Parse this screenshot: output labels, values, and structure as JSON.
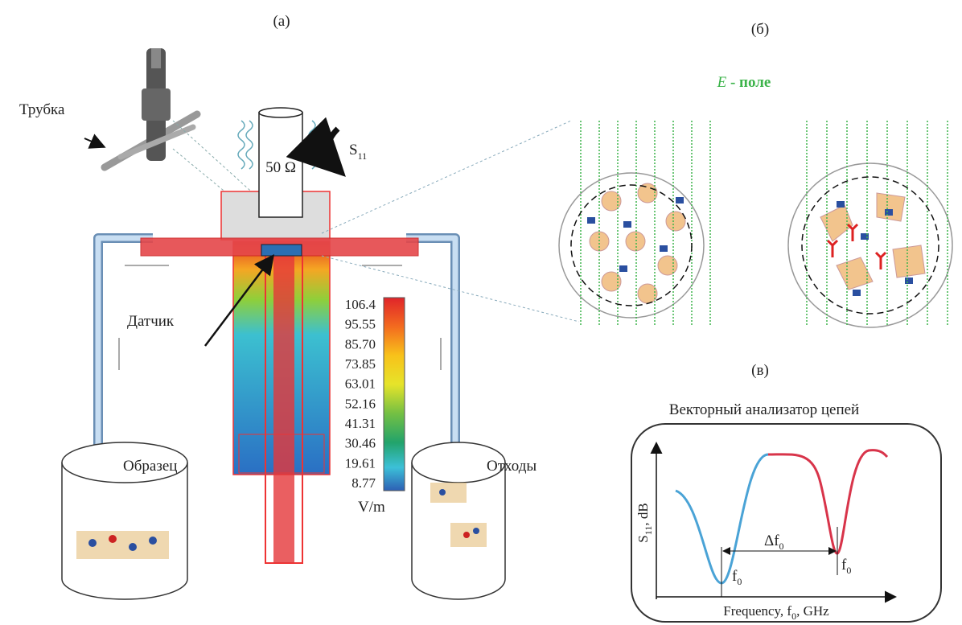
{
  "panels": {
    "a": "(а)",
    "b": "(б)",
    "c": "(в)"
  },
  "left": {
    "tube": "Трубка",
    "load": "50 Ω",
    "s11": {
      "base": "S",
      "sub": "11"
    },
    "sensor": "Датчик",
    "sample": "Образец",
    "waste": "Отходы",
    "colorbar": {
      "labels": [
        "106.4",
        "95.55",
        "85.70",
        "73.85",
        "63.01",
        "52.16",
        "41.31",
        "30.46",
        "19.61",
        "8.77"
      ],
      "unit": "V/m"
    }
  },
  "field": {
    "symbol": "E",
    "text": " - поле"
  },
  "vna": {
    "title": "Векторный анализатор цепей",
    "y_label": {
      "base": "S",
      "sub": "11",
      "rest": ", dB"
    },
    "x_label": {
      "pre": "Frequency, f",
      "sub": "0",
      "post": ", GHz"
    },
    "shift": {
      "base": "Δf",
      "sub": "0"
    },
    "f1": {
      "base": "f",
      "sub": "0"
    },
    "f2": {
      "base": "f",
      "sub": "0"
    }
  }
}
